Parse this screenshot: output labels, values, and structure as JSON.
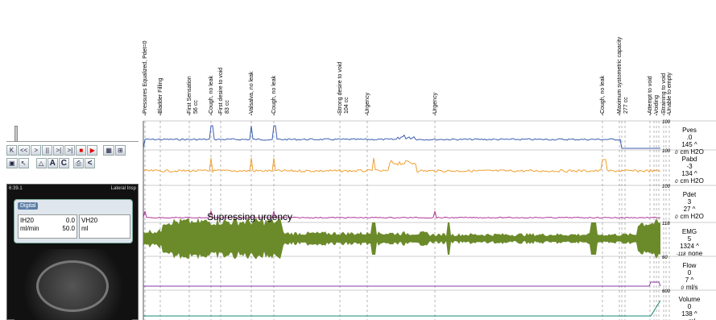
{
  "events": [
    {
      "text": "Pressures Equalized, Pdet=0",
      "sub": ""
    },
    {
      "text": "Bladder Filling",
      "sub": ""
    },
    {
      "text": "First Sensation",
      "sub": "56 cc"
    },
    {
      "text": "Cough, no leak",
      "sub": ""
    },
    {
      "text": "First desire to void",
      "sub": "83 cc"
    },
    {
      "text": "Valsalva, no leak",
      "sub": ""
    },
    {
      "text": "Cough, no leak",
      "sub": ""
    },
    {
      "text": "Strong desire to void",
      "sub": "104 cc"
    },
    {
      "text": "Urgency",
      "sub": ""
    },
    {
      "text": "Urgency",
      "sub": ""
    },
    {
      "text": "Cough, no leak",
      "sub": ""
    },
    {
      "text": "Maximum systometric capacity",
      "sub": "277 cc"
    },
    {
      "text": "Attempt to void",
      "sub": ""
    },
    {
      "text": "Voiding",
      "sub": ""
    },
    {
      "text": "Straining to void",
      "sub": ""
    },
    {
      "text": "Unable to empty",
      "sub": ""
    }
  ],
  "channels": [
    {
      "name": "Pves",
      "value": ".0",
      "peak": "145 ^",
      "max": "100",
      "min": "0",
      "unit": "cm H2O",
      "color": "#3d5fb0"
    },
    {
      "name": "Pabd",
      "value": "-3",
      "peak": "134 ^",
      "max": "100",
      "min": "0",
      "unit": "cm H2O",
      "color": "#f0a030"
    },
    {
      "name": "Pdet",
      "value": "3",
      "peak": "27 ^",
      "max": "100",
      "min": "0",
      "unit": "cm H2O",
      "color": "#b03a9a"
    },
    {
      "name": "EMG",
      "value": "5",
      "peak": "1324 ^",
      "max": "118",
      "min": "-118",
      "unit": "none",
      "color": "#6b8a2a"
    },
    {
      "name": "Flow",
      "value": "0",
      "peak": "7 ^",
      "max": "60",
      "min": "0",
      "unit": "ml/s",
      "color": "#8a3aa8"
    },
    {
      "name": "Volume",
      "value": "0",
      "peak": "138 ^",
      "max": "600",
      "min": "0",
      "unit": "ml",
      "color": "#1a8a7a"
    }
  ],
  "emg_annotation": "Supressing urgency",
  "video": {
    "timestamp": "6:39.1",
    "view": "Lateral Insp",
    "digital_title": "Digital",
    "ih20_label": "IH20",
    "ih20_value": "0.0",
    "ih20_unit": "ml/min",
    "ih20_rate": "50.0",
    "vh20_label": "VH20",
    "vh20_unit": "ml"
  },
  "toolbar": {
    "row1": [
      "K",
      "<<",
      ">",
      "||",
      ">|",
      ">|"
    ],
    "row2_letters": [
      "A",
      "C"
    ],
    "stop_glyph": "■",
    "play_glyph": "▶"
  }
}
